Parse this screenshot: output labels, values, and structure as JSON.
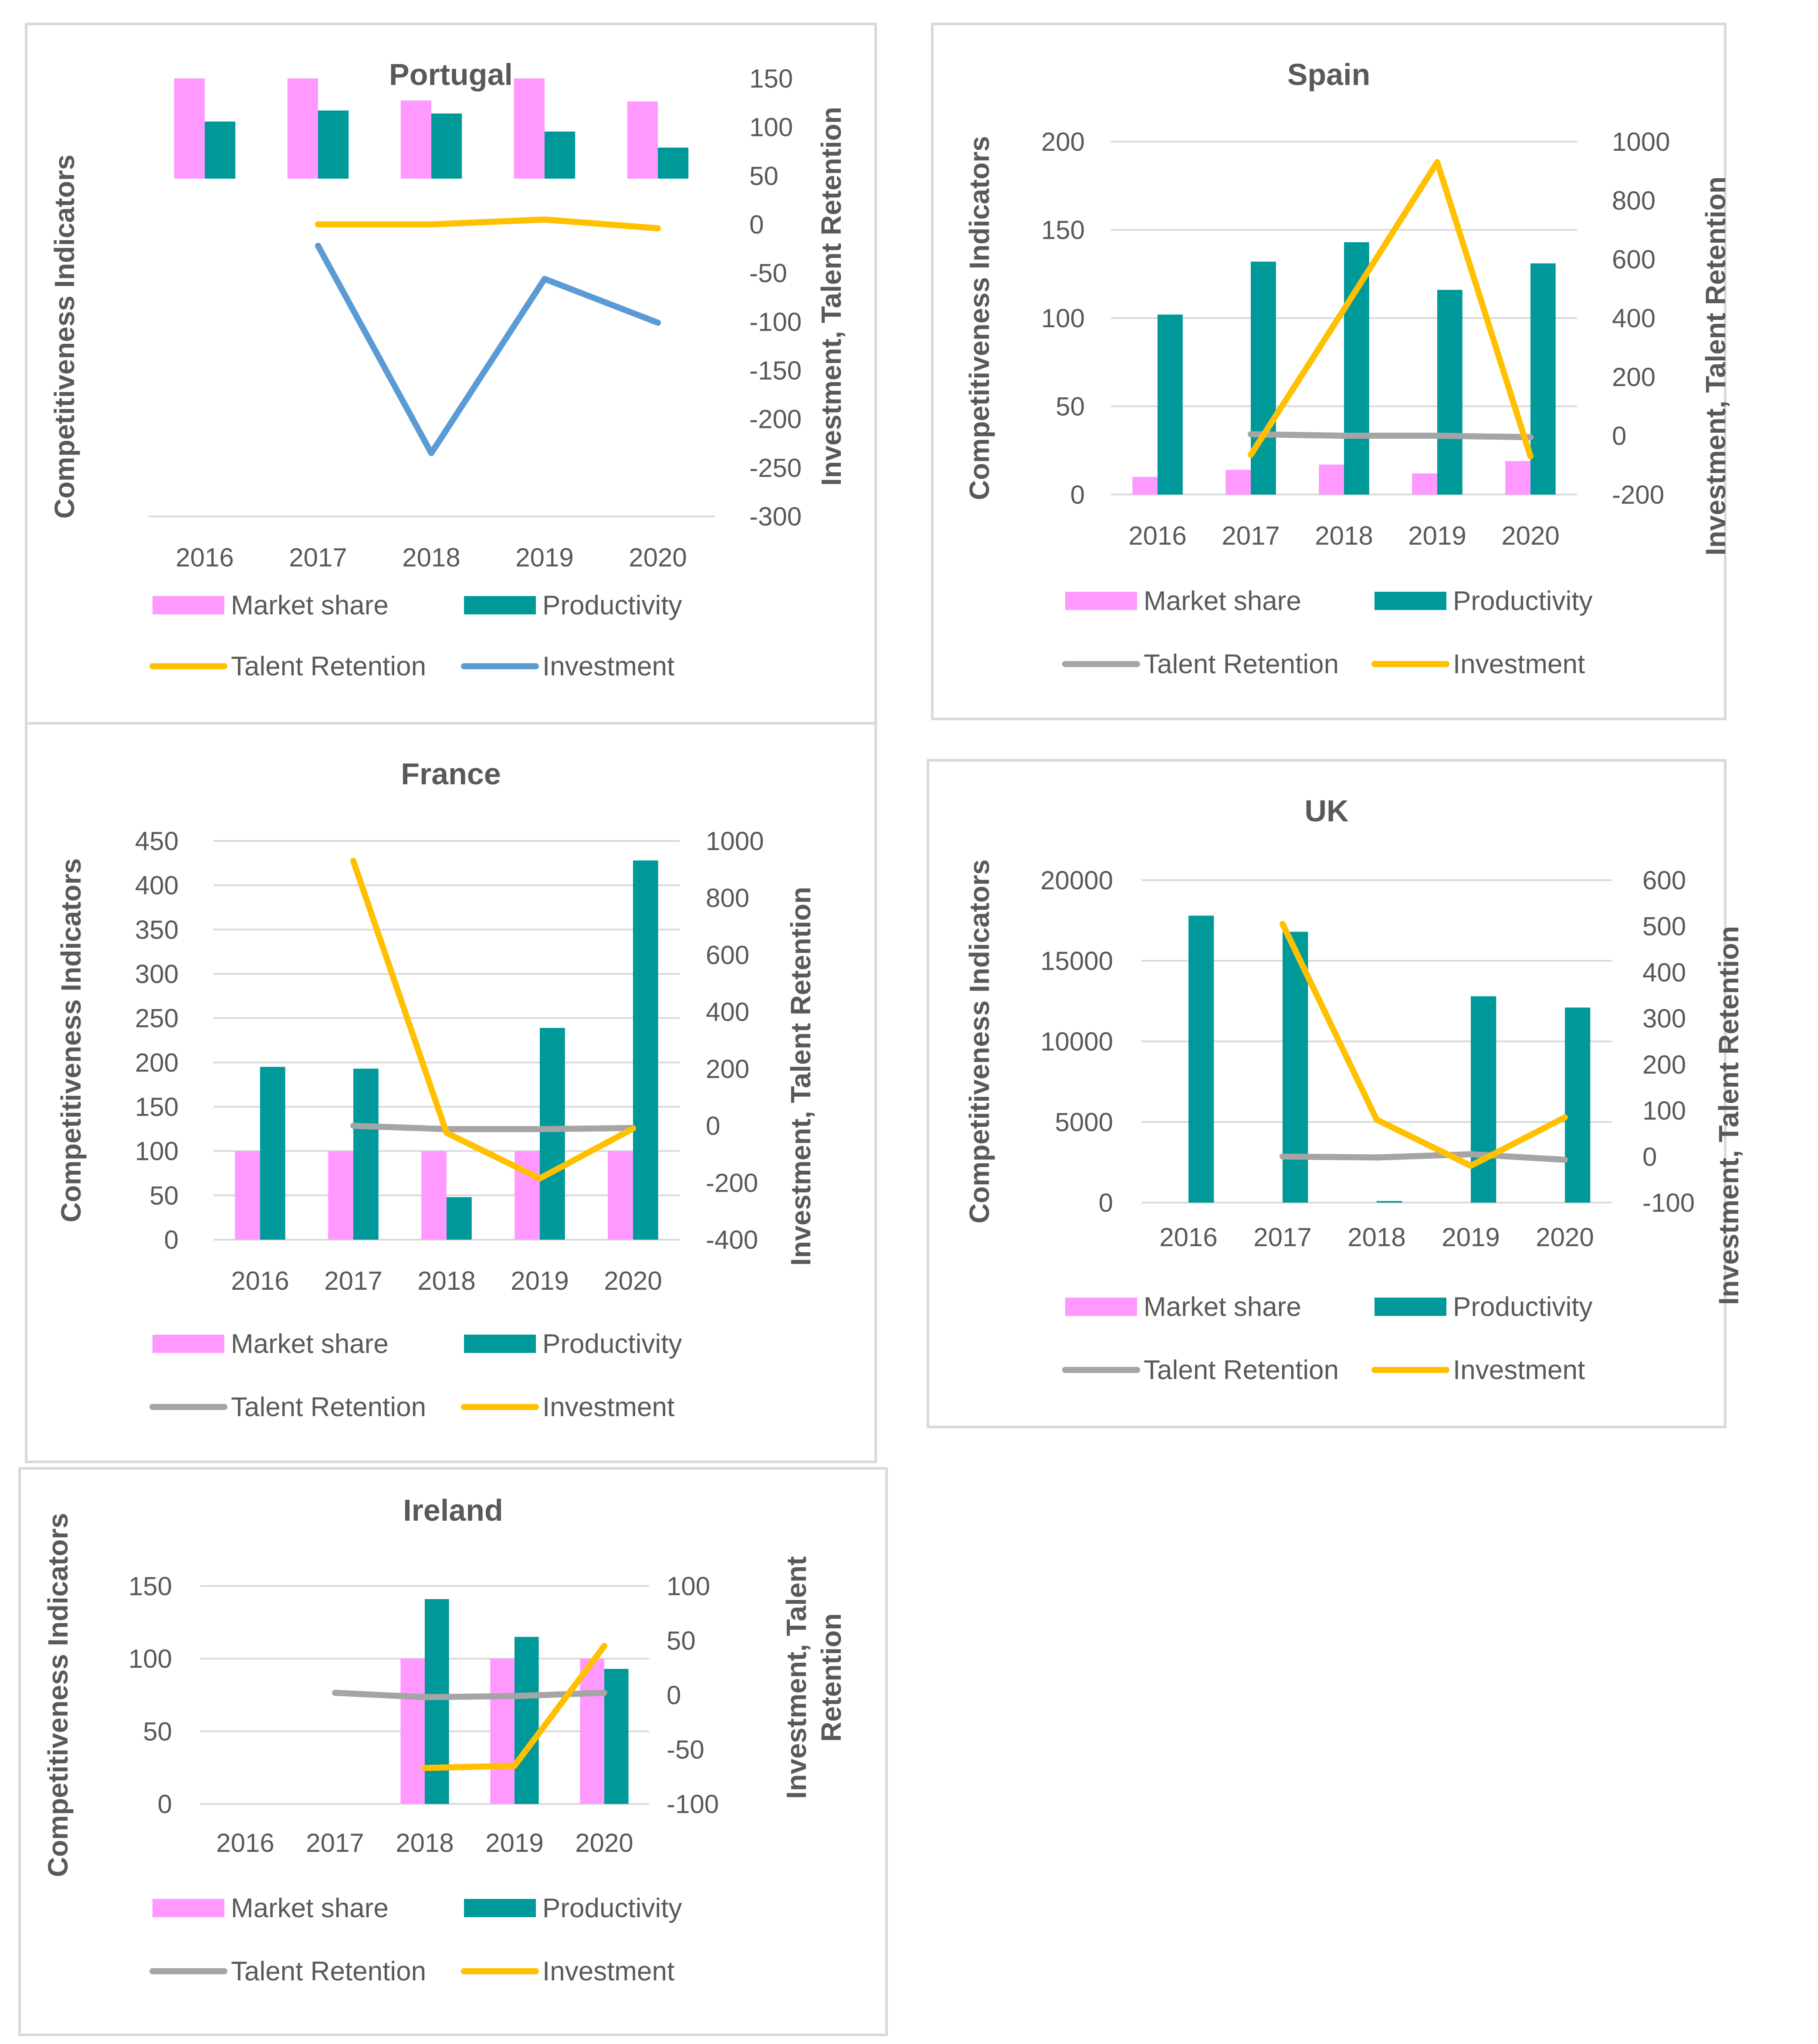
{
  "colors": {
    "market_share": "#ff99ff",
    "productivity": "#009999",
    "talent_retention": "#a5a5a5",
    "investment_yellow": "#ffc000",
    "investment_blue": "#5b9bd5",
    "text": "#595959",
    "grid": "#d9d9d9"
  },
  "chart_data": [
    {
      "id": "portugal",
      "type": "bar",
      "title": "Portugal",
      "categories": [
        "2016",
        "2017",
        "2018",
        "2019",
        "2020"
      ],
      "ylabel": "Competitiveness Indicators",
      "y2label": "Investment, Talent Retention",
      "y2label_lines": [
        "Investment, Talent Retention"
      ],
      "ylim": [
        -300,
        150
      ],
      "y2lim": [
        -300,
        150
      ],
      "yticks": [],
      "y2ticks": [
        "150",
        "100",
        "50",
        "0",
        "-50",
        "-100",
        "-150",
        "-200",
        "-250",
        "-300"
      ],
      "gridlines": false,
      "series": [
        {
          "name": "Market share",
          "kind": "bar",
          "axis": "primary",
          "color": "market_share",
          "values": [
            100,
            100,
            78,
            100,
            77
          ]
        },
        {
          "name": "Productivity",
          "kind": "bar",
          "axis": "primary",
          "color": "productivity",
          "values": [
            57,
            68,
            65,
            47,
            31
          ]
        },
        {
          "name": "Talent Retention",
          "kind": "line",
          "axis": "secondary",
          "color": "investment_yellow",
          "values": [
            null,
            0,
            0,
            5,
            -4
          ]
        },
        {
          "name": "Investment",
          "kind": "line",
          "axis": "secondary",
          "color": "investment_blue",
          "values": [
            null,
            -22,
            -235,
            -56,
            -101
          ]
        }
      ],
      "legend": [
        [
          "Market share",
          "Productivity"
        ],
        [
          "Talent Retention",
          "Investment"
        ]
      ]
    },
    {
      "id": "spain",
      "type": "bar",
      "title": "Spain",
      "categories": [
        "2016",
        "2017",
        "2018",
        "2019",
        "2020"
      ],
      "ylabel": "Competitiveness Indicators",
      "y2label": "Investment, Talent Retention",
      "y2label_lines": [
        "Investment, Talent Retention"
      ],
      "ylim": [
        0,
        200
      ],
      "y2lim": [
        -200,
        1000
      ],
      "yticks": [
        "200",
        "150",
        "100",
        "50",
        "0"
      ],
      "y2ticks": [
        "1000",
        "800",
        "600",
        "400",
        "200",
        "0",
        "-200"
      ],
      "gridlines": true,
      "series": [
        {
          "name": "Market share",
          "kind": "bar",
          "axis": "primary",
          "color": "market_share",
          "values": [
            10,
            14,
            17,
            12,
            19
          ]
        },
        {
          "name": "Productivity",
          "kind": "bar",
          "axis": "primary",
          "color": "productivity",
          "values": [
            102,
            132,
            143,
            116,
            131
          ]
        },
        {
          "name": "Talent Retention",
          "kind": "line",
          "axis": "secondary",
          "color": "talent_retention",
          "values": [
            null,
            5,
            0,
            0,
            -5
          ]
        },
        {
          "name": "Investment",
          "kind": "line",
          "axis": "secondary",
          "color": "investment_yellow",
          "values": [
            null,
            -65,
            430,
            930,
            -70
          ]
        }
      ],
      "legend": [
        [
          "Market share",
          "Productivity"
        ],
        [
          "Talent Retention",
          "Investment"
        ]
      ]
    },
    {
      "id": "france",
      "type": "bar",
      "title": "France",
      "categories": [
        "2016",
        "2017",
        "2018",
        "2019",
        "2020"
      ],
      "ylabel": "Competitiveness Indicators",
      "y2label": "Investment, Talent Retention",
      "y2label_lines": [
        "Investment, Talent Retention"
      ],
      "ylim": [
        0,
        450
      ],
      "y2lim": [
        -400,
        1000
      ],
      "yticks": [
        "450",
        "400",
        "350",
        "300",
        "250",
        "200",
        "150",
        "100",
        "50",
        "0"
      ],
      "y2ticks": [
        "1000",
        "800",
        "600",
        "400",
        "200",
        "0",
        "-200",
        "-400"
      ],
      "gridlines": true,
      "series": [
        {
          "name": "Market share",
          "kind": "bar",
          "axis": "primary",
          "color": "market_share",
          "values": [
            100,
            100,
            100,
            100,
            100
          ]
        },
        {
          "name": "Productivity",
          "kind": "bar",
          "axis": "primary",
          "color": "productivity",
          "values": [
            195,
            193,
            48,
            239,
            428
          ]
        },
        {
          "name": "Talent Retention",
          "kind": "line",
          "axis": "secondary",
          "color": "talent_retention",
          "values": [
            null,
            0,
            -12,
            -12,
            -8
          ]
        },
        {
          "name": "Investment",
          "kind": "line",
          "axis": "secondary",
          "color": "investment_yellow",
          "values": [
            null,
            930,
            -25,
            -185,
            -10
          ]
        }
      ],
      "legend": [
        [
          "Market share",
          "Productivity"
        ],
        [
          "Talent Retention",
          "Investment"
        ]
      ]
    },
    {
      "id": "uk",
      "type": "bar",
      "title": "UK",
      "categories": [
        "2016",
        "2017",
        "2018",
        "2019",
        "2020"
      ],
      "ylabel": "Competitiveness Indicators",
      "y2label": "Investment, Talent Retention",
      "y2label_lines": [
        "Investment, Talent Retention"
      ],
      "ylim": [
        0,
        20000
      ],
      "y2lim": [
        -100,
        600
      ],
      "yticks": [
        "20000",
        "15000",
        "10000",
        "5000",
        "0"
      ],
      "y2ticks": [
        "600",
        "500",
        "400",
        "300",
        "200",
        "100",
        "0",
        "-100"
      ],
      "gridlines": true,
      "series": [
        {
          "name": "Market share",
          "kind": "bar",
          "axis": "primary",
          "color": "market_share",
          "values": [
            0,
            0,
            0,
            0,
            0
          ]
        },
        {
          "name": "Productivity",
          "kind": "bar",
          "axis": "primary",
          "color": "productivity",
          "values": [
            17800,
            16800,
            100,
            12800,
            12100
          ]
        },
        {
          "name": "Talent Retention",
          "kind": "line",
          "axis": "secondary",
          "color": "talent_retention",
          "values": [
            null,
            0,
            -2,
            5,
            -7
          ]
        },
        {
          "name": "Investment",
          "kind": "line",
          "axis": "secondary",
          "color": "investment_yellow",
          "values": [
            null,
            505,
            80,
            -20,
            85
          ]
        }
      ],
      "legend": [
        [
          "Market share",
          "Productivity"
        ],
        [
          "Talent Retention",
          "Investment"
        ]
      ]
    },
    {
      "id": "ireland",
      "type": "bar",
      "title": "Ireland",
      "categories": [
        "2016",
        "2017",
        "2018",
        "2019",
        "2020"
      ],
      "ylabel": "Competitiveness Indicators",
      "y2label": "Investment, Talent Retention",
      "y2label_lines": [
        "Investment, Talent",
        "Retention"
      ],
      "ylim": [
        0,
        150
      ],
      "y2lim": [
        -100,
        100
      ],
      "yticks": [
        "150",
        "100",
        "50",
        "0"
      ],
      "y2ticks": [
        "100",
        "50",
        "0",
        "-50",
        "-100"
      ],
      "gridlines": true,
      "series": [
        {
          "name": "Market share",
          "kind": "bar",
          "axis": "primary",
          "color": "market_share",
          "values": [
            null,
            null,
            100,
            100,
            100
          ]
        },
        {
          "name": "Productivity",
          "kind": "bar",
          "axis": "primary",
          "color": "productivity",
          "values": [
            null,
            null,
            141,
            115,
            93
          ]
        },
        {
          "name": "Talent Retention",
          "kind": "line",
          "axis": "secondary",
          "color": "talent_retention",
          "values": [
            null,
            2,
            -2,
            -1,
            2
          ]
        },
        {
          "name": "Investment",
          "kind": "line",
          "axis": "secondary",
          "color": "investment_yellow",
          "values": [
            null,
            null,
            -67,
            -65,
            45
          ]
        }
      ],
      "legend": [
        [
          "Market share",
          "Productivity"
        ],
        [
          "Talent Retention",
          "Investment"
        ]
      ]
    }
  ]
}
